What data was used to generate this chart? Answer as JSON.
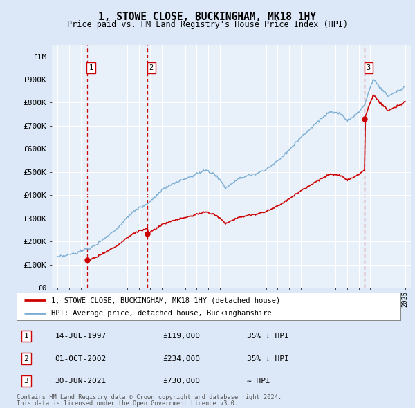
{
  "title": "1, STOWE CLOSE, BUCKINGHAM, MK18 1HY",
  "subtitle": "Price paid vs. HM Land Registry's House Price Index (HPI)",
  "legend_property": "1, STOWE CLOSE, BUCKINGHAM, MK18 1HY (detached house)",
  "legend_hpi": "HPI: Average price, detached house, Buckinghamshire",
  "footer1": "Contains HM Land Registry data © Crown copyright and database right 2024.",
  "footer2": "This data is licensed under the Open Government Licence v3.0.",
  "transactions": [
    {
      "num": 1,
      "date": "14-JUL-1997",
      "price": 119000,
      "note": "35% ↓ HPI",
      "x": 1997.54
    },
    {
      "num": 2,
      "date": "01-OCT-2002",
      "price": 234000,
      "note": "35% ↓ HPI",
      "x": 2002.75
    },
    {
      "num": 3,
      "date": "30-JUN-2021",
      "price": 730000,
      "note": "≈ HPI",
      "x": 2021.5
    }
  ],
  "ylim": [
    0,
    1050000
  ],
  "xlim": [
    1994.5,
    2025.5
  ],
  "background_color": "#dce8f7",
  "plot_bg": "#e8f0fa",
  "grid_color": "#ffffff",
  "property_color": "#cc0000",
  "hpi_color": "#7aadd4",
  "dashed_color": "#cc0000",
  "transaction_box_color": "#cc0000",
  "yticks": [
    0,
    100000,
    200000,
    300000,
    400000,
    500000,
    600000,
    700000,
    800000,
    900000,
    1000000
  ],
  "ytick_labels": [
    "£0",
    "£100K",
    "£200K",
    "£300K",
    "£400K",
    "£500K",
    "£600K",
    "£700K",
    "£800K",
    "£900K",
    "£1M"
  ]
}
